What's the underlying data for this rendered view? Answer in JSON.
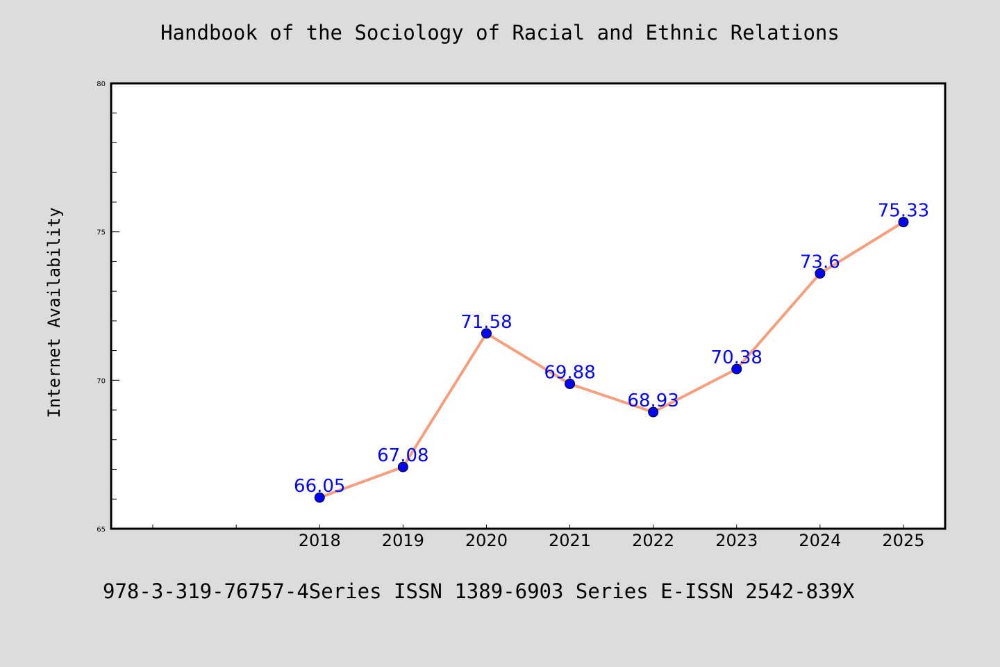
{
  "page": {
    "title": "Handbook of the Sociology of Racial and Ethnic Relations",
    "footer": "978-3-319-76757-4Series ISSN 1389-6903 Series E-ISSN 2542-839X"
  },
  "chart_data": {
    "type": "line",
    "title": "Handbook of the Sociology of Racial and Ethnic Relations",
    "xlabel": "",
    "ylabel": "Internet Availability",
    "x": [
      "2018",
      "2019",
      "2020",
      "2021",
      "2022",
      "2023",
      "2024",
      "2025"
    ],
    "values": [
      66.05,
      67.08,
      71.58,
      69.88,
      68.93,
      70.38,
      73.6,
      75.33
    ],
    "data_labels": [
      "66.05",
      "67.08",
      "71.58",
      "69.88",
      "68.93",
      "70.38",
      "73.6",
      "75.33"
    ],
    "ylim": [
      65,
      80
    ],
    "yticks": [
      "65",
      "70",
      "75",
      "80"
    ],
    "grid": false,
    "line_color": "#f4a07e",
    "marker_color": "#0000ff",
    "label_color": "#0000ff"
  }
}
